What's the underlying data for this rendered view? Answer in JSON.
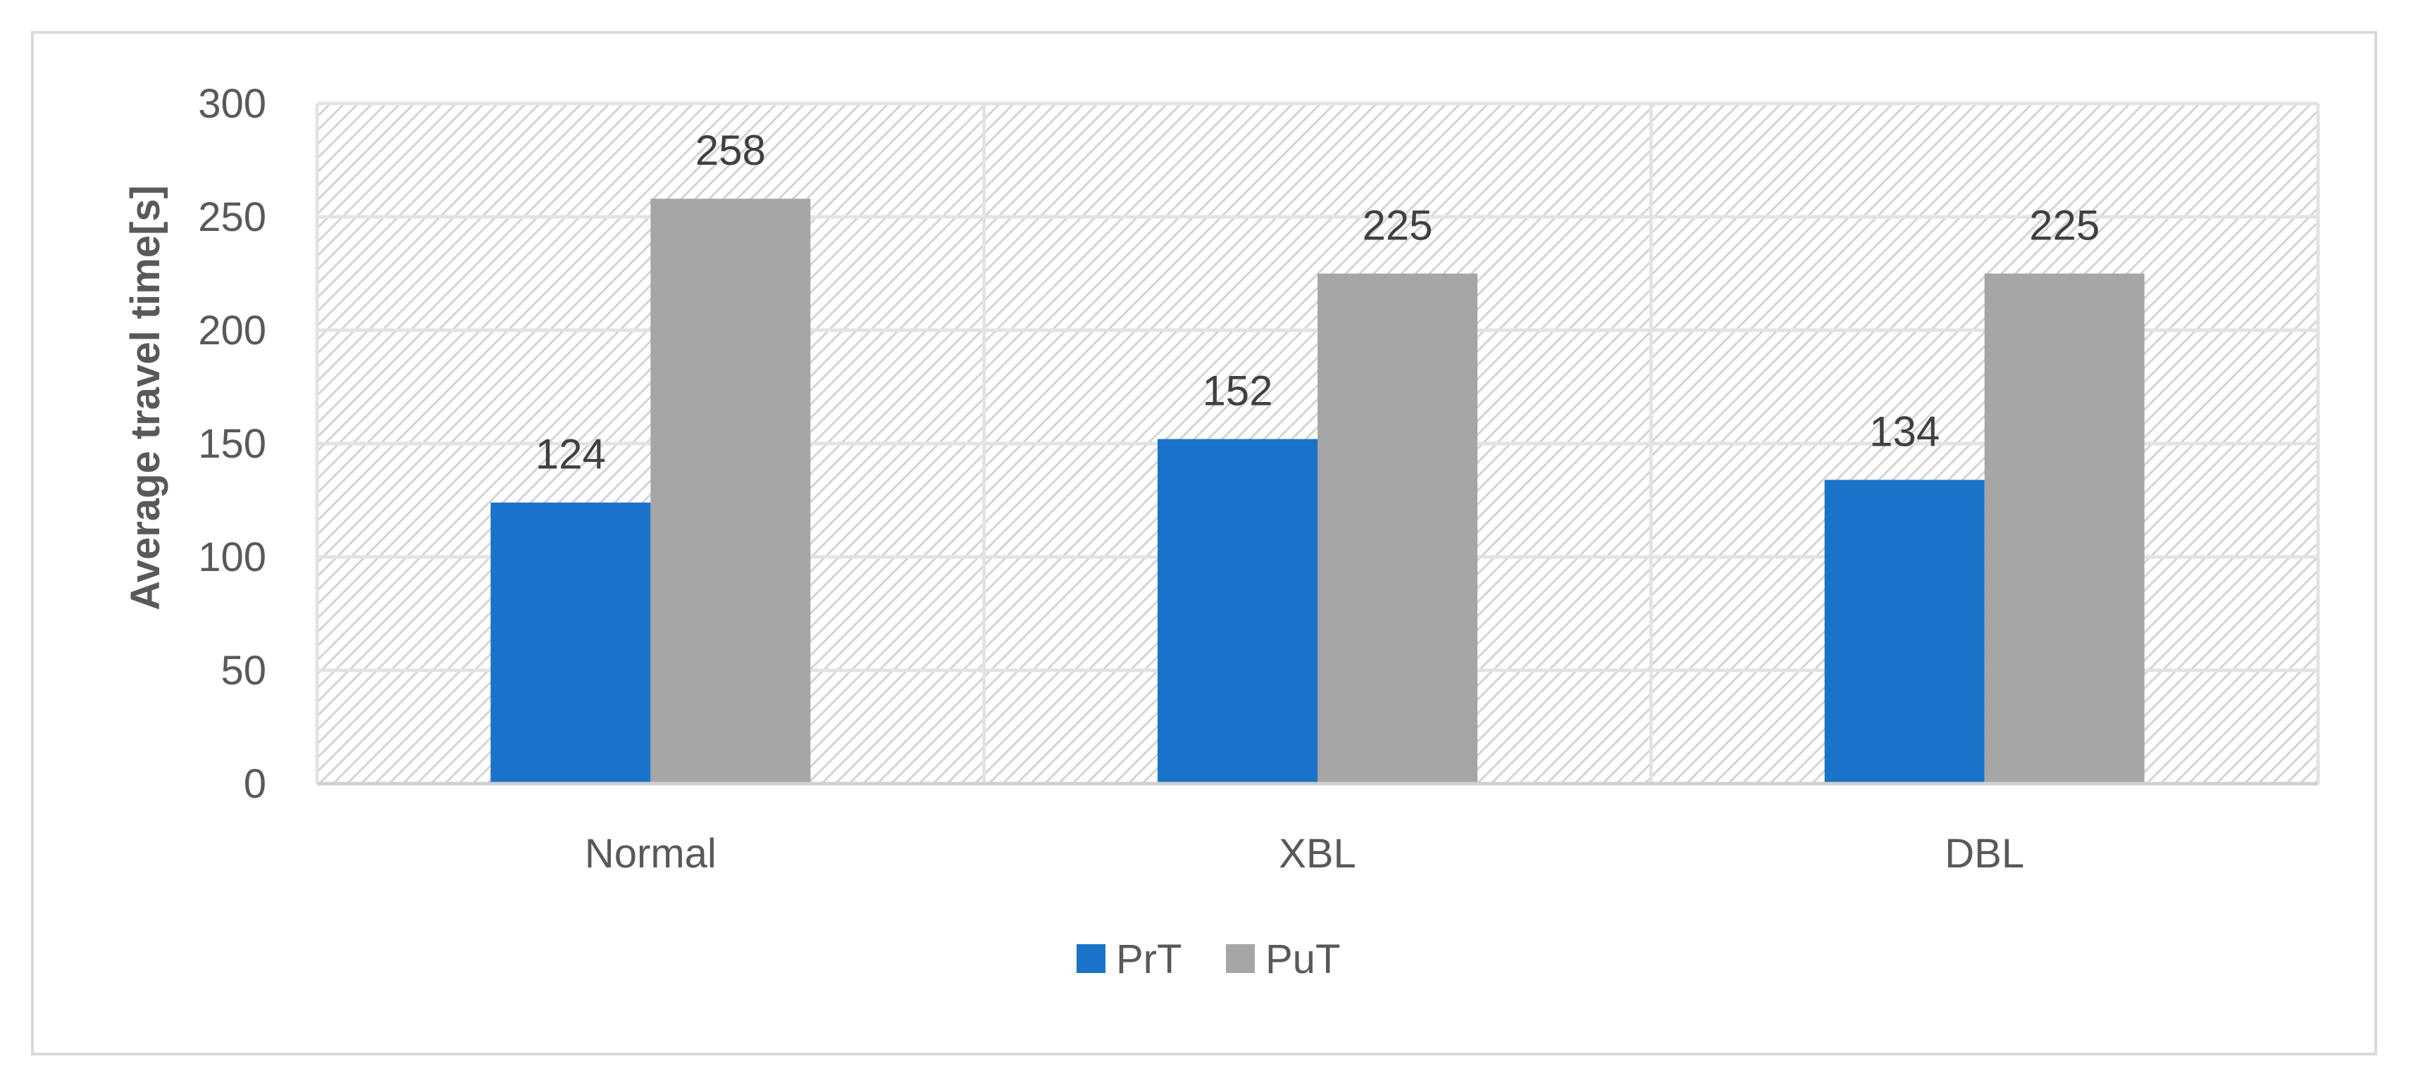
{
  "chart_data": {
    "type": "bar",
    "categories": [
      "Normal",
      "XBL",
      "DBL"
    ],
    "series": [
      {
        "name": "PrT",
        "values": [
          124,
          152,
          134
        ],
        "color": "#1a73c8"
      },
      {
        "name": "PuT",
        "values": [
          258,
          225,
          225
        ],
        "color": "#a6a6a6"
      }
    ],
    "title": "",
    "xlabel": "",
    "ylabel": "Average travel time[s]",
    "ylim": [
      0,
      300
    ],
    "yticks": [
      0,
      50,
      100,
      150,
      200,
      250,
      300
    ],
    "grid": true,
    "plot_background": "hatched",
    "data_labels": true,
    "legend_position": "bottom"
  }
}
